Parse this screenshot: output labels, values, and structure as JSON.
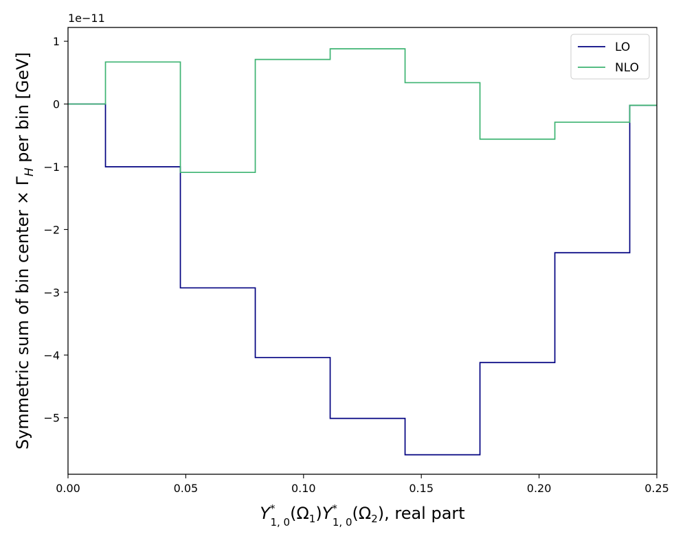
{
  "chart_data": {
    "type": "line",
    "step": "post",
    "title": "",
    "xlabel": "Y*1,0(Ω1)Y*1,0(Ω2), real part",
    "ylabel": "Symmetric sum of bin center × ΓH per bin [GeV]",
    "y_offset_label": "1e−11",
    "y_scale_factor": 1e-11,
    "xlim": [
      0.0,
      0.25
    ],
    "ylim": [
      -5.9,
      1.22
    ],
    "grid": false,
    "legend_position": "upper right",
    "x_ticks": [
      {
        "value": 0.0,
        "label": "0.00"
      },
      {
        "value": 0.05,
        "label": "0.05"
      },
      {
        "value": 0.1,
        "label": "0.10"
      },
      {
        "value": 0.15,
        "label": "0.15"
      },
      {
        "value": 0.2,
        "label": "0.20"
      },
      {
        "value": 0.25,
        "label": "0.25"
      }
    ],
    "y_ticks": [
      {
        "value": 1,
        "label": "1"
      },
      {
        "value": 0,
        "label": "0"
      },
      {
        "value": -1,
        "label": "−1"
      },
      {
        "value": -2,
        "label": "−2"
      },
      {
        "value": -3,
        "label": "−3"
      },
      {
        "value": -4,
        "label": "−4"
      },
      {
        "value": -5,
        "label": "−5"
      }
    ],
    "x_edges": [
      0.0,
      0.0159,
      0.0477,
      0.0795,
      0.1113,
      0.1431,
      0.1749,
      0.2067,
      0.2385,
      0.25
    ],
    "series": [
      {
        "name": "LO",
        "color": "#000080",
        "values": [
          0,
          -1.0,
          -2.93,
          -4.04,
          -5.01,
          -5.59,
          -4.12,
          -2.37,
          -0.02
        ]
      },
      {
        "name": "NLO",
        "color": "#3cb371",
        "values": [
          0,
          0.67,
          -1.09,
          0.71,
          0.88,
          0.34,
          -0.56,
          -0.29,
          -0.02
        ]
      }
    ]
  }
}
